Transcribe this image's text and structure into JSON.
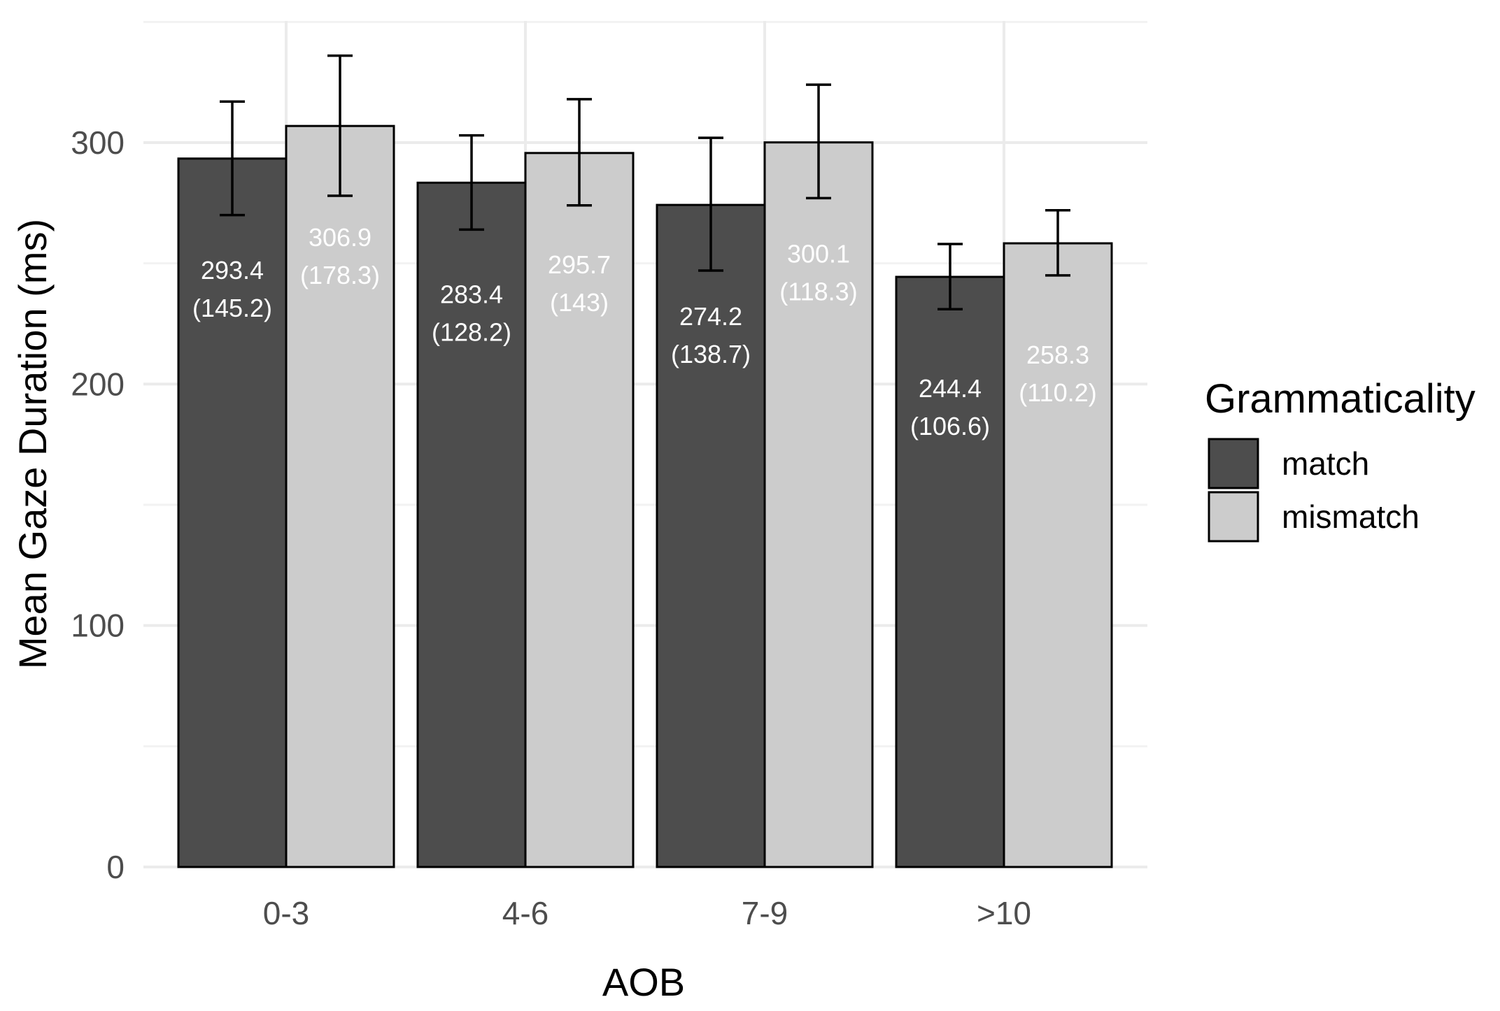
{
  "chart_data": {
    "type": "bar",
    "title": "",
    "xlabel": "AOB",
    "ylabel": "Mean Gaze Duration (ms)",
    "categories": [
      "0-3",
      "4-6",
      "7-9",
      ">10"
    ],
    "ylim": [
      0,
      350
    ],
    "yticks": [
      0,
      100,
      200,
      300
    ],
    "grid": true,
    "legend": {
      "title": "Grammaticality",
      "position": "right"
    },
    "series": [
      {
        "name": "match",
        "color": "#4d4d4d",
        "label_color": "#ffffff",
        "values": [
          293.4,
          283.4,
          274.2,
          244.4
        ],
        "sd": [
          145.2,
          128.2,
          138.7,
          106.6
        ],
        "sd_labels": [
          "145.2",
          "128.2",
          "138.7",
          "106.6"
        ],
        "error_low": [
          270,
          264,
          247,
          231
        ],
        "error_high": [
          317,
          303,
          302,
          258
        ]
      },
      {
        "name": "mismatch",
        "color": "#cccccc",
        "label_color": "#ffffff",
        "values": [
          306.9,
          295.7,
          300.1,
          258.3
        ],
        "sd": [
          178.3,
          143,
          118.3,
          110.2
        ],
        "sd_labels": [
          "178.3",
          "143",
          "118.3",
          "110.2"
        ],
        "error_low": [
          278,
          274,
          277,
          245
        ],
        "error_high": [
          336,
          318,
          324,
          272
        ]
      }
    ]
  }
}
